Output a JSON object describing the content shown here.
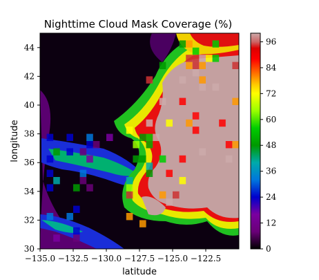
{
  "chart_data": {
    "type": "heatmap",
    "title": "Nighttime Cloud Mask Coverage (%)",
    "xlabel": "latitude",
    "ylabel": "longitude",
    "xlim": [
      -135.0,
      -120.0
    ],
    "ylim": [
      30,
      45
    ],
    "xticks": [
      -135.0,
      -132.5,
      -130.0,
      -127.5,
      -125.0,
      -122.5
    ],
    "xtick_labels": [
      "−135.0",
      "−132.5",
      "−130.0",
      "−127.5",
      "−125.0",
      "−122.5"
    ],
    "yticks": [
      30,
      32,
      34,
      36,
      38,
      40,
      42,
      44
    ],
    "ytick_labels": [
      "30",
      "32",
      "34",
      "36",
      "38",
      "40",
      "42",
      "44"
    ],
    "colorbar": {
      "range": [
        0,
        100
      ],
      "ticks": [
        0,
        12,
        24,
        36,
        48,
        60,
        72,
        84,
        96
      ],
      "tick_labels": [
        "0",
        "12",
        "24",
        "36",
        "48",
        "60",
        "72",
        "84",
        "96"
      ],
      "colormap": "nipy_spectral-like: black, purple, blue, cyan, green, yellow, orange, red, pink-gray"
    },
    "regions": [
      {
        "description": "clear ocean background",
        "value": 0
      },
      {
        "lon_range": [
          -127.0,
          -120.0
        ],
        "lat_range": [
          36.0,
          43.5
        ],
        "value": 98
      },
      {
        "lon_range": [
          -128.5,
          -124.0
        ],
        "lat_range": [
          31.5,
          36.0
        ],
        "value": 98
      },
      {
        "lon_range": [
          -128.5,
          -125.5
        ],
        "lat_range": [
          34.0,
          39.0
        ],
        "value": 60
      },
      {
        "lon_range": [
          -134.5,
          -129.0
        ],
        "lat_range": [
          33.5,
          38.0
        ],
        "value": 30
      },
      {
        "lon_range": [
          -135.0,
          -131.0
        ],
        "lat_range": [
          30.5,
          33.0
        ],
        "value": 25
      },
      {
        "lon_range": [
          -126.0,
          -121.0
        ],
        "lat_range": [
          42.5,
          45.0
        ],
        "value": 70
      }
    ]
  }
}
